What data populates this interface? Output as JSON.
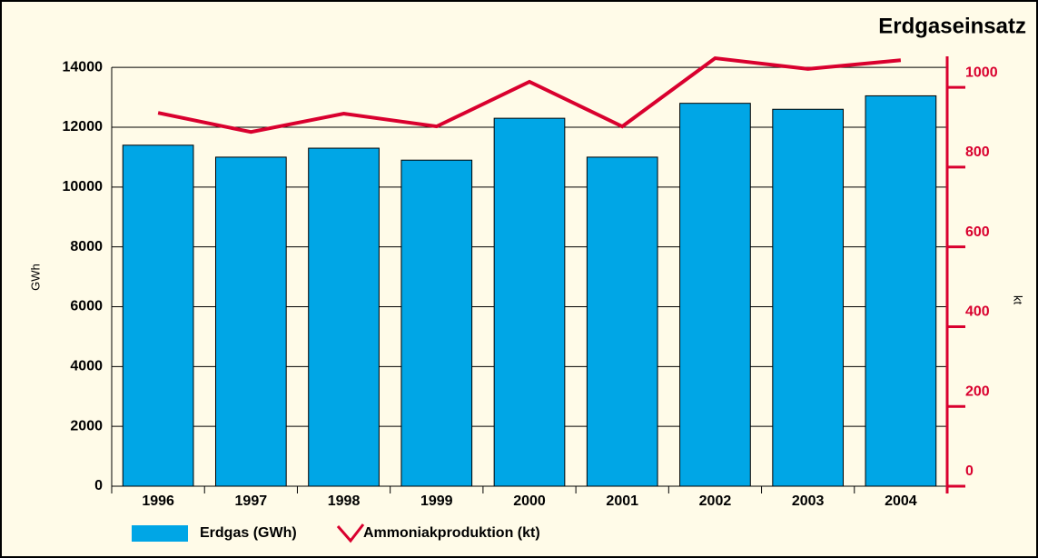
{
  "chart_data": {
    "type": "bar",
    "title": "Erdgaseinsatz",
    "categories": [
      "1996",
      "1997",
      "1998",
      "1999",
      "2000",
      "2001",
      "2002",
      "2003",
      "2004"
    ],
    "series": [
      {
        "name": "Erdgas (GWh)",
        "type": "bar",
        "color": "#00a6e6",
        "values": [
          11400,
          11000,
          11300,
          10900,
          12300,
          11000,
          12800,
          12600,
          13050
        ]
      },
      {
        "name": "Ammoniakproduktion (kt)",
        "type": "line",
        "axis": "y2",
        "color": "#d9002e",
        "values": [
          936,
          888,
          934,
          902,
          1014,
          902,
          1073,
          1046,
          1068
        ]
      }
    ],
    "ylabel": "GWh",
    "y2label": "kt",
    "ylim": [
      0,
      14400
    ],
    "yticks": [
      0,
      2000,
      4000,
      6000,
      8000,
      10000,
      12000,
      14000
    ],
    "y2lim": [
      0,
      1080
    ],
    "y2ticks": [
      0,
      200,
      400,
      600,
      800,
      1000
    ],
    "grid": true,
    "legend": "bottom"
  }
}
